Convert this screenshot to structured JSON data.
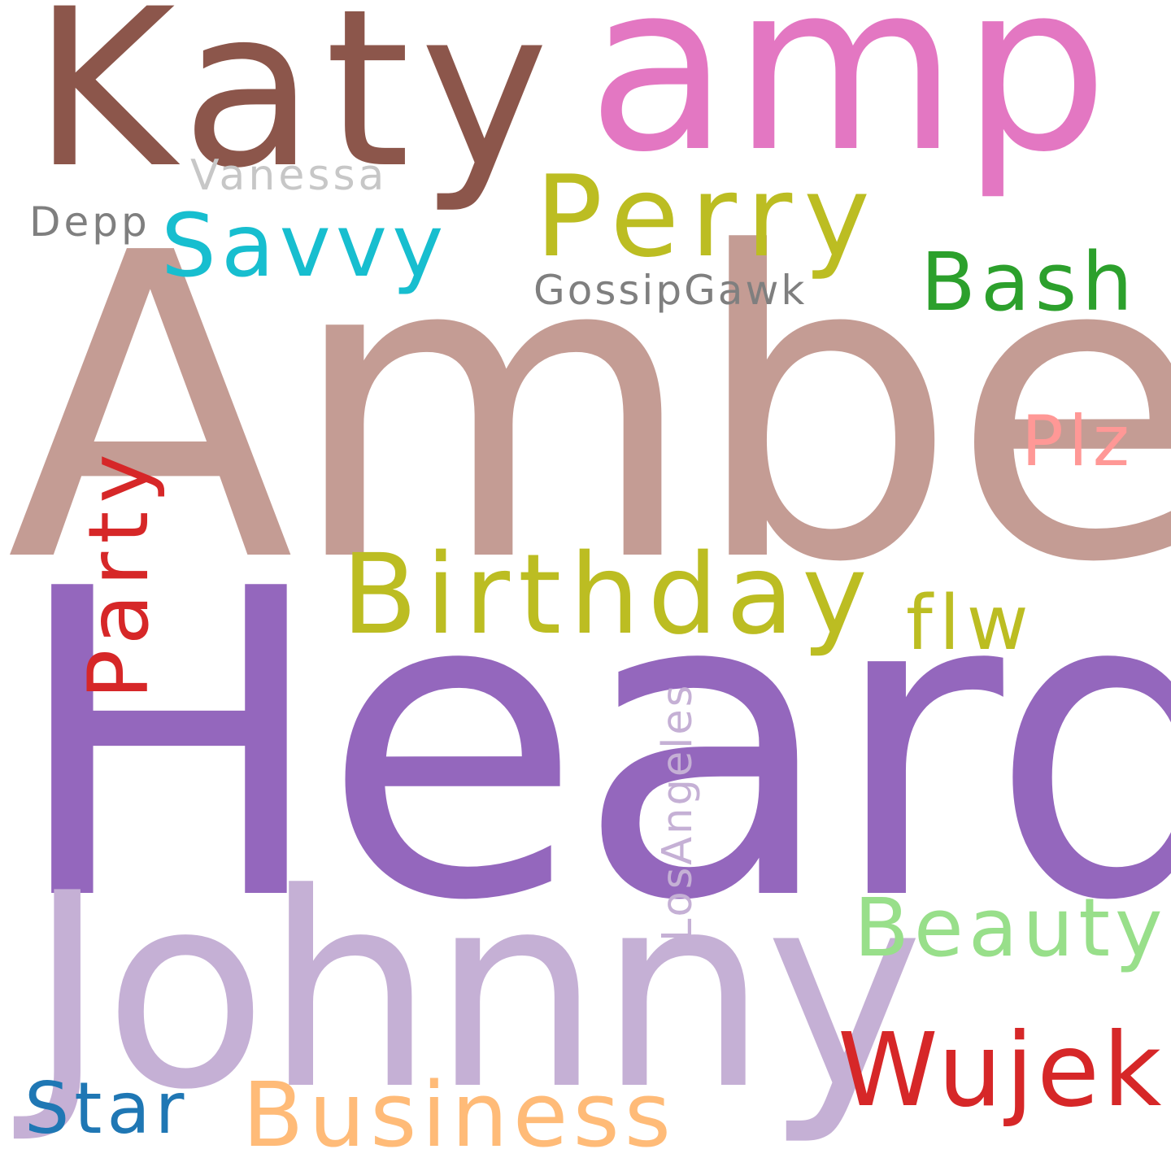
{
  "words": [
    {
      "text": "Heard",
      "color": "#9467bd"
    },
    {
      "text": "Amber",
      "color": "#c49c94"
    },
    {
      "text": "Johnny",
      "color": "#c5b0d5"
    },
    {
      "text": "Katy",
      "color": "#8c564b"
    },
    {
      "text": "amp",
      "color": "#e377c2"
    },
    {
      "text": "Birthday",
      "color": "#bcbd22"
    },
    {
      "text": "Perry",
      "color": "#bcbd22"
    },
    {
      "text": "Savvy",
      "color": "#17becf"
    },
    {
      "text": "Party",
      "color": "#d62728"
    },
    {
      "text": "Wujek",
      "color": "#d62728"
    },
    {
      "text": "Business",
      "color": "#ffbb78"
    },
    {
      "text": "Beauty",
      "color": "#98df8a"
    },
    {
      "text": "Bash",
      "color": "#2ca02c"
    },
    {
      "text": "Plz",
      "color": "#ff9896"
    },
    {
      "text": "Star",
      "color": "#1f77b4"
    },
    {
      "text": "flw",
      "color": "#bcbd22"
    },
    {
      "text": "LosAngeles",
      "color": "#c5b0d5"
    },
    {
      "text": "GossipGawk",
      "color": "#7f7f7f"
    },
    {
      "text": "Vanessa",
      "color": "#c7c7c7"
    },
    {
      "text": "Depp",
      "color": "#7f7f7f"
    }
  ]
}
